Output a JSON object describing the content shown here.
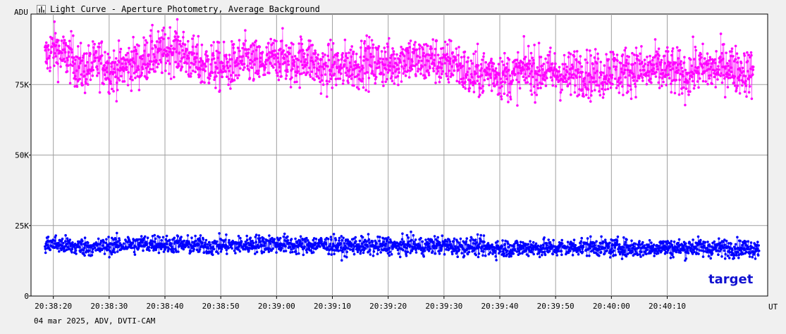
{
  "window": {
    "title": "Light Curve - Aperture Photometry, Average Background",
    "icon": "light-curve-chart-icon"
  },
  "footer": {
    "caption": "04 mar 2025, ADV, DVTI-CAM"
  },
  "chart_data": {
    "type": "scatter",
    "title": "Light Curve - Aperture Photometry, Average Background",
    "ylabel": "ADU",
    "xlabel": "UT",
    "ylim": [
      0,
      100000
    ],
    "y_ticks": [
      {
        "value": 0,
        "label": "0"
      },
      {
        "value": 25000,
        "label": "25K"
      },
      {
        "value": 50000,
        "label": "50K"
      },
      {
        "value": 75000,
        "label": "75K"
      }
    ],
    "x_range_seconds": [
      "20:38:16",
      "20:40:28"
    ],
    "x_ticks": [
      "20:38:20",
      "20:38:30",
      "20:38:40",
      "20:38:50",
      "20:39:00",
      "20:39:10",
      "20:39:20",
      "20:39:30",
      "20:39:40",
      "20:39:50",
      "20:40:00",
      "20:40:10"
    ],
    "grid": true,
    "annotations": [
      "target"
    ],
    "series": [
      {
        "name": "",
        "color": "#ff00ff",
        "points_per_second": 17,
        "values_k": [
          84,
          87,
          88,
          85,
          85,
          84,
          81,
          80,
          81,
          82,
          83,
          82,
          80,
          80,
          81,
          82,
          83,
          82,
          84,
          86,
          85,
          86,
          87,
          88,
          87,
          86,
          84,
          83,
          82,
          82,
          82,
          81,
          81,
          81,
          82,
          83,
          84,
          83,
          82,
          82,
          83,
          84,
          85,
          84,
          82,
          83,
          84,
          85,
          83,
          81,
          80,
          81,
          82,
          80,
          82,
          82,
          81,
          84,
          83,
          82,
          83,
          82,
          82,
          83,
          84,
          85,
          84,
          83,
          83,
          84,
          84,
          82,
          82,
          84,
          82,
          80,
          78,
          78,
          79,
          79,
          80,
          79,
          78,
          78,
          78,
          79,
          80,
          81,
          79,
          80,
          80,
          79,
          79,
          78,
          78,
          80,
          80,
          79,
          78,
          79,
          78,
          81,
          80,
          79,
          80,
          80,
          81,
          80,
          79,
          81,
          80,
          80,
          80,
          79,
          79,
          78,
          80,
          81,
          80,
          81,
          80,
          81,
          82,
          81,
          80,
          80,
          79
        ]
      },
      {
        "name": "target",
        "color": "#0000ff",
        "points_per_second": 17,
        "values_k": [
          18,
          18.5,
          18.5,
          18,
          18,
          17.5,
          17.5,
          17.5,
          17.5,
          17,
          17.5,
          17.5,
          18,
          18,
          18,
          18.5,
          18,
          18.5,
          18.5,
          18.5,
          19,
          18.5,
          18,
          18.5,
          18.5,
          18,
          18,
          18,
          18,
          18,
          17.5,
          18,
          18,
          18,
          18,
          18,
          18,
          18.5,
          18.5,
          18.5,
          18.5,
          18.5,
          18.5,
          18.5,
          18,
          18,
          18,
          18,
          18,
          18.5,
          18,
          18,
          18,
          17.5,
          17.5,
          18,
          18,
          17.5,
          18,
          17.5,
          17.5,
          18,
          18,
          17.5,
          17.5,
          18,
          18,
          17.5,
          17.5,
          18,
          18,
          18,
          18,
          17.5,
          17.5,
          17.5,
          18,
          17.5,
          17.5,
          17,
          17,
          17,
          17,
          17,
          17,
          17,
          17,
          17.5,
          17,
          17,
          17,
          17,
          17,
          17,
          17,
          17.5,
          17.5,
          17.5,
          17.5,
          17.5,
          17,
          17,
          17,
          17.5,
          17,
          17,
          17,
          17,
          17,
          17,
          17.5,
          17.5,
          17,
          17,
          17,
          17,
          17.5,
          17.5,
          17,
          17,
          17,
          17,
          17,
          17,
          17,
          17,
          17,
          17
        ]
      }
    ]
  }
}
